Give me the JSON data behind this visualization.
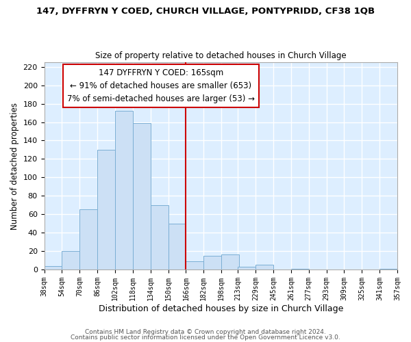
{
  "title": "147, DYFFRYN Y COED, CHURCH VILLAGE, PONTYPRIDD, CF38 1QB",
  "subtitle": "Size of property relative to detached houses in Church Village",
  "xlabel": "Distribution of detached houses by size in Church Village",
  "ylabel": "Number of detached properties",
  "bar_color": "#cce0f5",
  "bar_edge_color": "#7bafd4",
  "plot_bg_color": "#ddeeff",
  "fig_bg_color": "#ffffff",
  "grid_color": "#ffffff",
  "bins_left": [
    38,
    54,
    70,
    86,
    102,
    118,
    134,
    150,
    166,
    182,
    198,
    213,
    229,
    245,
    261,
    277,
    293,
    309,
    325,
    341
  ],
  "bin_width": 16,
  "heights": [
    4,
    20,
    65,
    130,
    172,
    159,
    70,
    50,
    9,
    15,
    16,
    3,
    5,
    0,
    1,
    0,
    0,
    0,
    0,
    1
  ],
  "tick_labels": [
    "38sqm",
    "54sqm",
    "70sqm",
    "86sqm",
    "102sqm",
    "118sqm",
    "134sqm",
    "150sqm",
    "166sqm",
    "182sqm",
    "198sqm",
    "213sqm",
    "229sqm",
    "245sqm",
    "261sqm",
    "277sqm",
    "293sqm",
    "309sqm",
    "325sqm",
    "341sqm",
    "357sqm"
  ],
  "ylim": [
    0,
    225
  ],
  "yticks": [
    0,
    20,
    40,
    60,
    80,
    100,
    120,
    140,
    160,
    180,
    200,
    220
  ],
  "vline_x": 166,
  "vline_color": "#cc0000",
  "annotation_title": "147 DYFFRYN Y COED: 165sqm",
  "annotation_line1": "← 91% of detached houses are smaller (653)",
  "annotation_line2": "7% of semi-detached houses are larger (53) →",
  "annotation_box_color": "#ffffff",
  "annotation_box_edge": "#cc0000",
  "footer1": "Contains HM Land Registry data © Crown copyright and database right 2024.",
  "footer2": "Contains public sector information licensed under the Open Government Licence v3.0."
}
